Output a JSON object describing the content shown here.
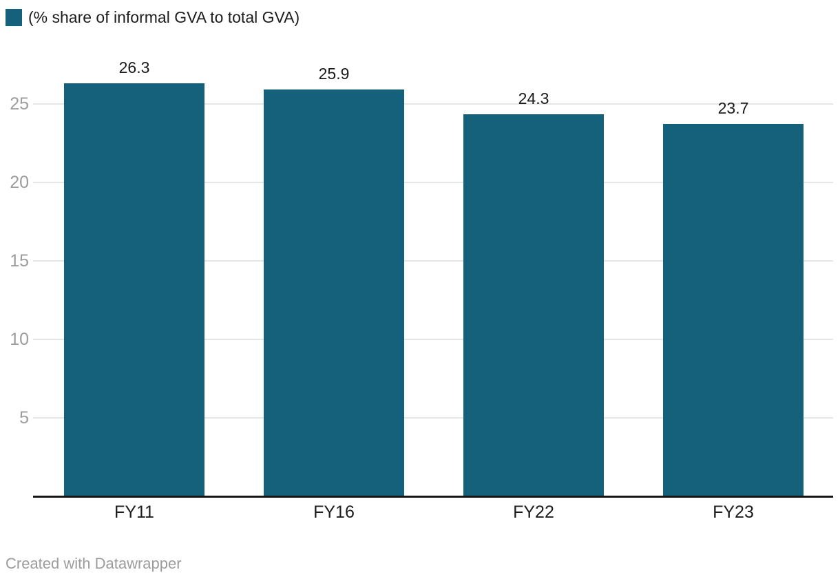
{
  "colors": {
    "background": "#ffffff",
    "bar": "#15607a",
    "grid": "#e5e5e5",
    "axis_line": "#161616",
    "tick_label": "#9c9c9c",
    "value_label": "#1a1a1a",
    "category_label": "#1d1d1d",
    "footer_text": "#9c9c9c"
  },
  "footer": {
    "credit": "Created with Datawrapper"
  },
  "chart_data": {
    "type": "bar",
    "title": "",
    "xlabel": "",
    "ylabel": "",
    "legend": {
      "label": "(% share of informal GVA to total GVA)",
      "position": "top-left",
      "swatch_color": "#15607a"
    },
    "categories": [
      "FY11",
      "FY16",
      "FY22",
      "FY23"
    ],
    "values": [
      26.3,
      25.9,
      24.3,
      23.7
    ],
    "yticks": [
      5,
      10,
      15,
      20,
      25
    ],
    "ylim": [
      0,
      29.5
    ],
    "grid": "horizontal-only",
    "bar_color": "#15607a"
  }
}
